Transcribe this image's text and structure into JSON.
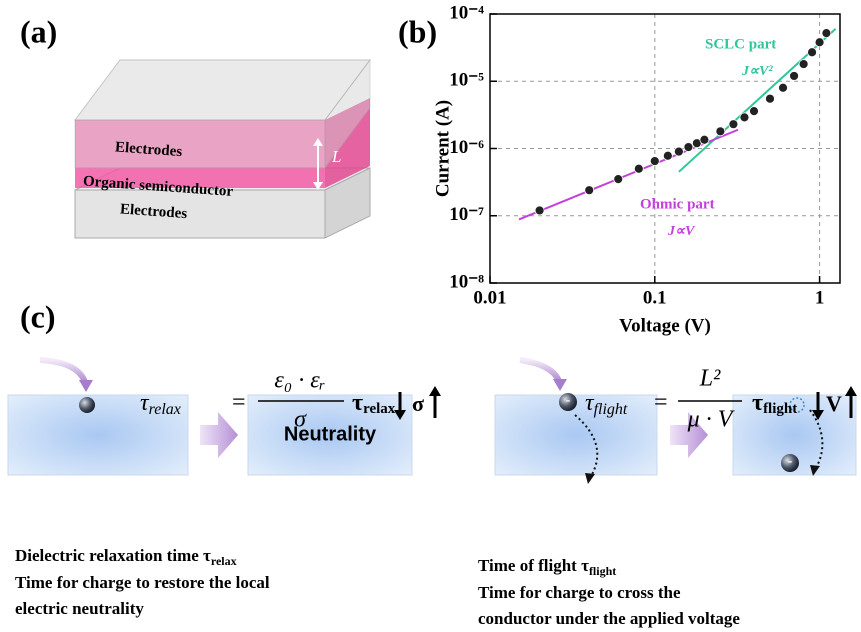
{
  "panels": {
    "a": "(a)",
    "b": "(b)",
    "c": "(c)"
  },
  "diagram_a": {
    "top_electrode": "Electrodes",
    "semiconductor": "Organic semiconductor",
    "bottom_electrode": "Electrodes",
    "thickness": "L"
  },
  "chart_data": {
    "type": "scatter",
    "xscale": "log",
    "yscale": "log",
    "x_label": "Voltage (V)",
    "y_label": "Current (A)",
    "xlim": [
      0.01,
      1.33
    ],
    "ylim": [
      1e-08,
      0.0001
    ],
    "xticks": [
      0.01,
      0.1,
      1
    ],
    "yticks": [
      {
        "value": 1e-08,
        "label": "10⁻⁸"
      },
      {
        "value": 1e-07,
        "label": "10⁻⁷"
      },
      {
        "value": 1e-06,
        "label": "10⁻⁶"
      },
      {
        "value": 1e-05,
        "label": "10⁻⁵"
      },
      {
        "value": 0.0001,
        "label": "10⁻⁴"
      }
    ],
    "grid": true,
    "series": [
      {
        "kind": "scatter",
        "color": "#222222",
        "x": [
          0.02,
          0.04,
          0.06,
          0.08,
          0.1,
          0.12,
          0.14,
          0.16,
          0.18,
          0.2,
          0.25,
          0.3,
          0.35,
          0.4,
          0.5,
          0.6,
          0.7,
          0.8,
          0.9,
          1.0,
          1.1
        ],
        "values": [
          1.2e-07,
          2.4e-07,
          3.5e-07,
          5e-07,
          6.5e-07,
          7.8e-07,
          9e-07,
          1.05e-06,
          1.2e-06,
          1.35e-06,
          1.8e-06,
          2.3e-06,
          2.9e-06,
          3.6e-06,
          5.5e-06,
          8e-06,
          1.2e-05,
          1.8e-05,
          2.7e-05,
          3.8e-05,
          5.2e-05
        ]
      },
      {
        "kind": "line",
        "label": "SCLC part",
        "formula": "J∝V²",
        "color": "#2ec79c",
        "x": [
          0.14,
          1.25
        ],
        "values": [
          4.5e-07,
          6e-05
        ]
      },
      {
        "kind": "line",
        "label": "Ohmic part",
        "formula": "J∝V",
        "color": "#c43fdc",
        "x": [
          0.015,
          0.32
        ],
        "values": [
          8.8e-08,
          1.9e-06
        ]
      }
    ]
  },
  "diagram_c": {
    "left": {
      "equation": {
        "symbol": "τ",
        "subscript": "relax",
        "equals": "=",
        "numerator": "ε₀ · εᵣ",
        "denominator": "σ"
      },
      "trend": {
        "symbol": "τ",
        "subscript": "relax",
        "variable": "σ"
      },
      "state": "Neutrality",
      "description": {
        "line1": "Dielectric relaxation time τ",
        "line1_sub": "relax",
        "line2": "Time for charge to restore the local",
        "line3": "electric neutrality"
      }
    },
    "right": {
      "equation": {
        "symbol": "τ",
        "subscript": "flight",
        "equals": "=",
        "numerator": "L²",
        "denominator": "μ · V"
      },
      "trend": {
        "symbol": "τ",
        "subscript": "flight",
        "variable": "V"
      },
      "charge": "-",
      "description": {
        "line1": "Time of flight τ",
        "line1_sub": "flight",
        "line2": "Time for charge to cross the",
        "line3": "conductor under the applied voltage"
      }
    }
  }
}
